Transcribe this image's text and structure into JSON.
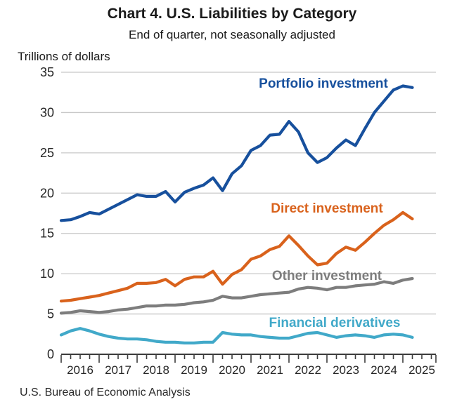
{
  "header": {
    "title": "Chart 4. U.S. Liabilities by Category",
    "subtitle": "End of quarter, not seasonally adjusted"
  },
  "footer": {
    "source": "U.S. Bureau of Economic Analysis"
  },
  "chart_data": {
    "type": "line",
    "title": "Chart 4. U.S. Liabilities by Category",
    "subtitle": "End of quarter, not seasonally adjusted",
    "unit_label": "Trillions of dollars",
    "ylabel": "Trillions of dollars",
    "xlabel": "",
    "ylim": [
      0,
      35
    ],
    "ytick_step": 5,
    "ytick_labels": [
      "0",
      "5",
      "10",
      "15",
      "20",
      "25",
      "30",
      "35"
    ],
    "grid": true,
    "legend_position": "inline-labels-on-chart",
    "x_year_labels": [
      "2016",
      "2017",
      "2018",
      "2019",
      "2020",
      "2021",
      "2022",
      "2023",
      "2024",
      "2025"
    ],
    "x": [
      "2015 Q4",
      "2016 Q1",
      "2016 Q2",
      "2016 Q3",
      "2016 Q4",
      "2017 Q1",
      "2017 Q2",
      "2017 Q3",
      "2017 Q4",
      "2018 Q1",
      "2018 Q2",
      "2018 Q3",
      "2018 Q4",
      "2019 Q1",
      "2019 Q2",
      "2019 Q3",
      "2019 Q4",
      "2020 Q1",
      "2020 Q2",
      "2020 Q3",
      "2020 Q4",
      "2021 Q1",
      "2021 Q2",
      "2021 Q3",
      "2021 Q4",
      "2022 Q1",
      "2022 Q2",
      "2022 Q3",
      "2022 Q4",
      "2023 Q1",
      "2023 Q2",
      "2023 Q3",
      "2023 Q4",
      "2024 Q1",
      "2024 Q2",
      "2024 Q3",
      "2024 Q4",
      "2025 Q1"
    ],
    "series": [
      {
        "name": "Portfolio investment",
        "color": "#17509d",
        "values": [
          16.6,
          16.7,
          17.1,
          17.6,
          17.4,
          18.0,
          18.6,
          19.2,
          19.8,
          19.6,
          19.6,
          20.2,
          18.9,
          20.1,
          20.6,
          21.0,
          21.9,
          20.3,
          22.4,
          23.4,
          25.3,
          25.9,
          27.2,
          27.3,
          28.9,
          27.6,
          25.0,
          23.8,
          24.4,
          25.6,
          26.6,
          25.9,
          28.0,
          30.0,
          31.4,
          32.8,
          33.3,
          33.1
        ]
      },
      {
        "name": "Direct investment",
        "color": "#d9621c",
        "values": [
          6.6,
          6.7,
          6.9,
          7.1,
          7.3,
          7.6,
          7.9,
          8.2,
          8.8,
          8.8,
          8.9,
          9.3,
          8.5,
          9.3,
          9.6,
          9.6,
          10.3,
          8.7,
          9.9,
          10.5,
          11.8,
          12.2,
          13.0,
          13.4,
          14.7,
          13.5,
          12.2,
          11.1,
          11.3,
          12.5,
          13.3,
          12.9,
          13.9,
          15.0,
          16.0,
          16.7,
          17.6,
          16.8
        ]
      },
      {
        "name": "Other investment",
        "color": "#7d7d7d",
        "values": [
          5.1,
          5.2,
          5.4,
          5.3,
          5.2,
          5.3,
          5.5,
          5.6,
          5.8,
          6.0,
          6.0,
          6.1,
          6.1,
          6.2,
          6.4,
          6.5,
          6.7,
          7.2,
          7.0,
          7.0,
          7.2,
          7.4,
          7.5,
          7.6,
          7.7,
          8.1,
          8.3,
          8.2,
          8.0,
          8.3,
          8.3,
          8.5,
          8.6,
          8.7,
          9.0,
          8.8,
          9.2,
          9.4
        ]
      },
      {
        "name": "Financial derivatives",
        "color": "#41a9c9",
        "values": [
          2.4,
          2.9,
          3.2,
          2.9,
          2.5,
          2.2,
          2.0,
          1.9,
          1.9,
          1.8,
          1.6,
          1.5,
          1.5,
          1.4,
          1.4,
          1.5,
          1.5,
          2.7,
          2.5,
          2.4,
          2.4,
          2.2,
          2.1,
          2.0,
          2.0,
          2.3,
          2.6,
          2.7,
          2.4,
          2.1,
          2.3,
          2.4,
          2.3,
          2.1,
          2.4,
          2.5,
          2.4,
          2.1
        ]
      }
    ],
    "colors": {
      "grid": "#c8c8c8",
      "axis": "#3c3c3c",
      "tick": "#3c3c3c",
      "label_text": "#262626"
    }
  }
}
